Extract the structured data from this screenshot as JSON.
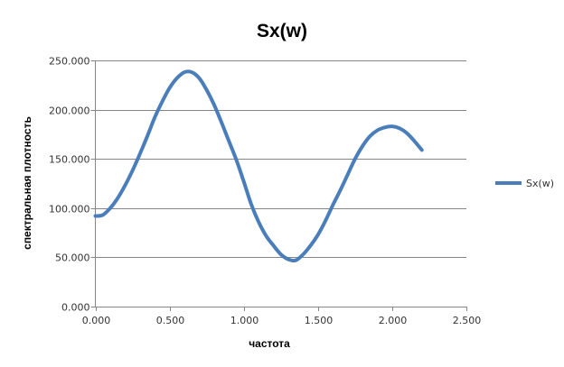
{
  "chart_data": {
    "type": "line",
    "title": "Sx(w)",
    "xlabel": "частота",
    "ylabel": "спектральная плотность",
    "xlim": [
      0,
      2.5
    ],
    "ylim": [
      0,
      250
    ],
    "xticks": [
      "0.000",
      "0.500",
      "1.000",
      "1.500",
      "2.000",
      "2.500"
    ],
    "yticks": [
      "0.000",
      "50.000",
      "100.000",
      "150.000",
      "200.000",
      "250.000"
    ],
    "grid": "horizontal",
    "legend_position": "right",
    "series": [
      {
        "name": "Sx(w)",
        "color": "#4a7ebb",
        "x": [
          0,
          0.05,
          0.1,
          0.15,
          0.2,
          0.25,
          0.3,
          0.35,
          0.4,
          0.45,
          0.5,
          0.55,
          0.6,
          0.65,
          0.7,
          0.75,
          0.8,
          0.85,
          0.9,
          0.95,
          1.0,
          1.05,
          1.1,
          1.15,
          1.2,
          1.25,
          1.3,
          1.35,
          1.4,
          1.45,
          1.5,
          1.55,
          1.6,
          1.65,
          1.7,
          1.75,
          1.8,
          1.85,
          1.9,
          1.95,
          2.0,
          2.05,
          2.1,
          2.15,
          2.2
        ],
        "y": [
          92,
          93,
          100,
          110,
          123,
          138,
          155,
          173,
          192,
          208,
          222,
          232,
          238,
          238,
          232,
          220,
          205,
          187,
          168,
          149,
          127,
          104,
          86,
          72,
          62,
          53,
          48,
          47,
          53,
          62,
          73,
          87,
          103,
          118,
          134,
          150,
          163,
          173,
          179,
          182,
          183,
          181,
          176,
          168,
          159
        ]
      }
    ]
  }
}
